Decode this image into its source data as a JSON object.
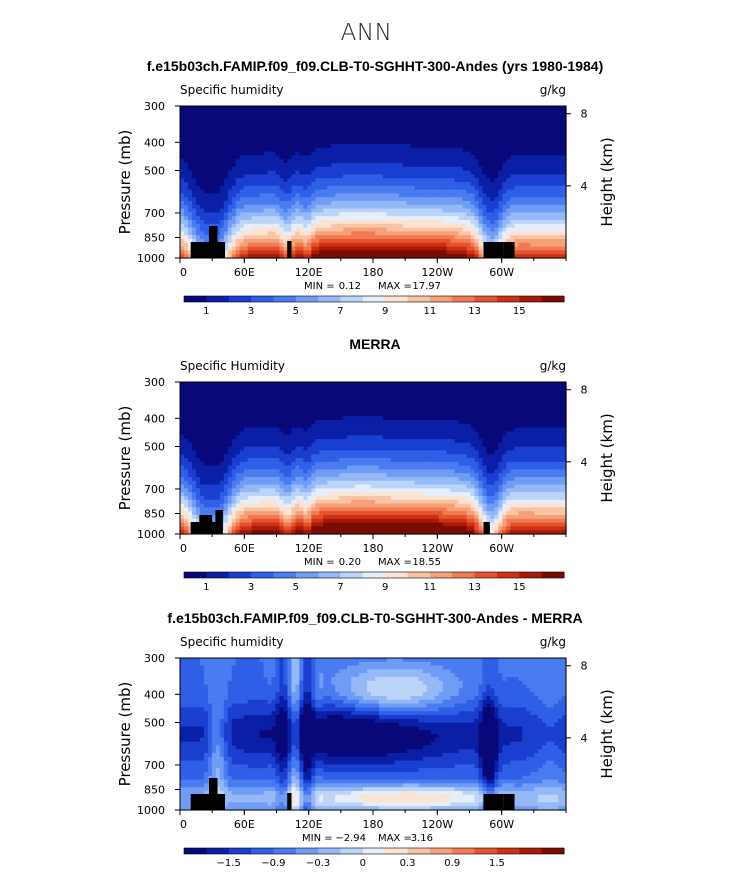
{
  "supertitle": "ANN",
  "chart_data": [
    {
      "type": "heatmap",
      "title": "f.e15b03ch.FAMIP.f09_f09.CLB-T0-SGHHT-300-Andes (yrs 1980-1984)",
      "left_label": "Specific humidity",
      "units": "g/kg",
      "ylabel": "Pressure (mb)",
      "ylabel_right": "Height (km)",
      "xticks": [
        "0",
        "60E",
        "120E",
        "180",
        "120W",
        "60W"
      ],
      "yticks": [
        "300",
        "400",
        "500",
        "700",
        "850",
        "1000"
      ],
      "yticks_right": [
        "8",
        "4"
      ],
      "stats": {
        "min_label": "MIN =",
        "min": "0.12",
        "max_label": "MAX =",
        "max": "17.97"
      },
      "colorbar_labels": [
        "1",
        "3",
        "5",
        "7",
        "9",
        "11",
        "13",
        "15"
      ],
      "levels_min": 1,
      "levels_step": 1
    },
    {
      "type": "heatmap",
      "title": "MERRA",
      "left_label": "Specific Humidity",
      "units": "g/kg",
      "ylabel": "Pressure (mb)",
      "ylabel_right": "Height (km)",
      "xticks": [
        "0",
        "60E",
        "120E",
        "180",
        "120W",
        "60W"
      ],
      "yticks": [
        "300",
        "400",
        "500",
        "700",
        "850",
        "1000"
      ],
      "yticks_right": [
        "8",
        "4"
      ],
      "stats": {
        "min_label": "MIN =",
        "min": "0.20",
        "max_label": "MAX =",
        "max": "18.55"
      },
      "colorbar_labels": [
        "1",
        "3",
        "5",
        "7",
        "9",
        "11",
        "13",
        "15"
      ],
      "levels_min": 1,
      "levels_step": 1
    },
    {
      "type": "heatmap",
      "title": "f.e15b03ch.FAMIP.f09_f09.CLB-T0-SGHHT-300-Andes - MERRA",
      "left_label": "Specific humidity",
      "units": "g/kg",
      "ylabel": "Pressure (mb)",
      "ylabel_right": "Height (km)",
      "xticks": [
        "0",
        "60E",
        "120E",
        "180",
        "120W",
        "60W"
      ],
      "yticks": [
        "300",
        "400",
        "500",
        "700",
        "850",
        "1000"
      ],
      "yticks_right": [
        "8",
        "4"
      ],
      "stats": {
        "min_label": "MIN =",
        "min": "−2.94",
        "max_label": "MAX =",
        "max": "3.16"
      },
      "colorbar_labels": [
        "−1.5",
        "−0.9",
        "−0.3",
        "0",
        "0.3",
        "0.9",
        "1.5"
      ],
      "levels_min": -1.5,
      "levels_step": 0.3
    }
  ],
  "colors": {
    "colormap": [
      "#08087a",
      "#0b1fa6",
      "#1a3fd0",
      "#2f5fe6",
      "#4a7bf0",
      "#6f9cf5",
      "#95b9f7",
      "#bcd4f8",
      "#e6eefa",
      "#fbe3d4",
      "#f9c3a5",
      "#f6a07a",
      "#f07a52",
      "#e5522e",
      "#cc3114",
      "#a81a08",
      "#7a0b03"
    ],
    "terrain": "#000000"
  }
}
